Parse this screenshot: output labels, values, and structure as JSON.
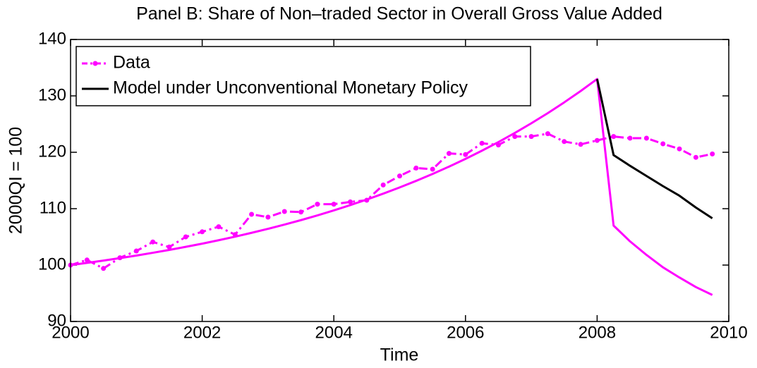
{
  "chart_data": {
    "type": "line",
    "title": "Panel B: Share of Non–traded Sector in Overall Gross Value Added",
    "xlabel": "Time",
    "ylabel": "2000QI = 100",
    "xlim": [
      2000,
      2010
    ],
    "ylim": [
      90,
      140
    ],
    "xticks": [
      2000,
      2002,
      2004,
      2006,
      2008,
      2010
    ],
    "yticks": [
      90,
      100,
      110,
      120,
      130,
      140
    ],
    "grid": false,
    "legend": "upper left",
    "x": [
      2000,
      2000.25,
      2000.5,
      2000.75,
      2001,
      2001.25,
      2001.5,
      2001.75,
      2002,
      2002.25,
      2002.5,
      2002.75,
      2003,
      2003.25,
      2003.5,
      2003.75,
      2004,
      2004.25,
      2004.5,
      2004.75,
      2005,
      2005.25,
      2005.5,
      2005.75,
      2006,
      2006.25,
      2006.5,
      2006.75,
      2007,
      2007.25,
      2007.5,
      2007.75,
      2008,
      2008.25,
      2008.5,
      2008.75,
      2009,
      2009.25,
      2009.5,
      2009.75
    ],
    "series": [
      {
        "name": "Data",
        "color": "#ff00ff",
        "style": "dashdot-dot",
        "values": [
          100,
          100.9,
          99.4,
          101.3,
          102.5,
          104.1,
          103.2,
          105,
          105.9,
          106.8,
          105.4,
          109,
          108.5,
          109.5,
          109.4,
          110.8,
          110.8,
          111.2,
          111.5,
          114.2,
          115.8,
          117.2,
          117,
          119.8,
          119.6,
          121.6,
          121.3,
          122.8,
          122.8,
          123.3,
          121.9,
          121.4,
          122.1,
          122.8,
          122.5,
          122.5,
          121.5,
          120.6,
          119.1,
          119.7
        ]
      },
      {
        "color": "#ff00ff",
        "style": "solid",
        "values": [
          100,
          100.39,
          100.8,
          101.23,
          101.69,
          102.18,
          102.69,
          103.23,
          103.8,
          104.41,
          105.04,
          105.72,
          106.43,
          107.18,
          107.97,
          108.81,
          109.7,
          110.63,
          111.62,
          112.66,
          113.77,
          114.93,
          116.16,
          117.46,
          118.83,
          120.28,
          121.81,
          123.43,
          125.14,
          126.94,
          128.85,
          130.86,
          132.99,
          107,
          104.2,
          101.8,
          99.6,
          97.8,
          96.1,
          94.7
        ]
      },
      {
        "name": "Model under Unconventional Monetary Policy",
        "color": "#000000",
        "style": "solid",
        "x": [
          2008,
          2008.25,
          2008.5,
          2008.75,
          2009,
          2009.25,
          2009.5,
          2009.75
        ],
        "values": [
          133,
          119.5,
          117.6,
          115.8,
          114,
          112.3,
          110.2,
          108.3
        ]
      }
    ]
  }
}
